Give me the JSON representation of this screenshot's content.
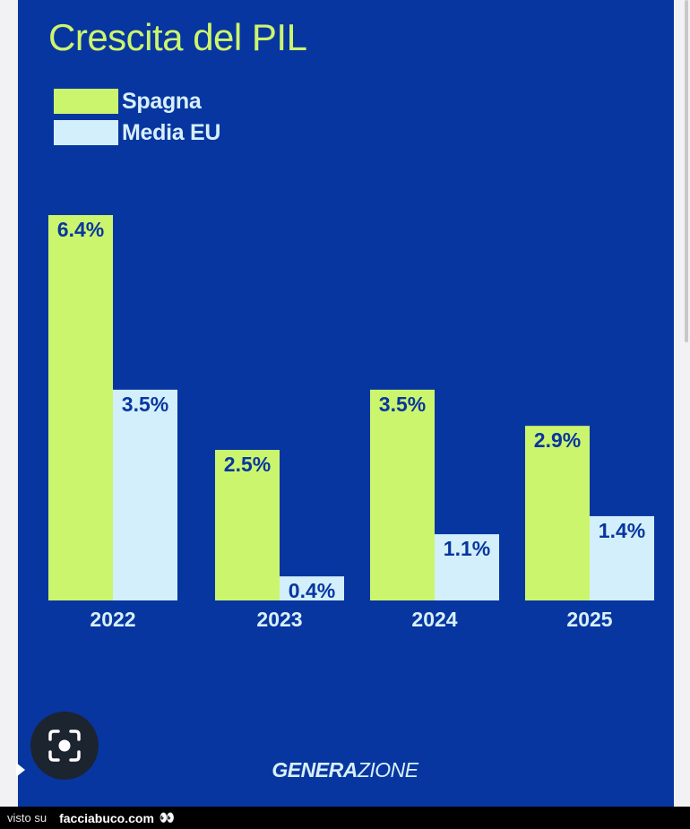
{
  "title": "Crescita del PIL",
  "legend": [
    {
      "label": "Spagna",
      "color": "#ccf56e"
    },
    {
      "label": "Media EU",
      "color": "#d2effb"
    }
  ],
  "chart_data": {
    "type": "bar",
    "title": "Crescita del PIL",
    "categories": [
      "2022",
      "2023",
      "2024",
      "2025"
    ],
    "series": [
      {
        "name": "Spagna",
        "values": [
          6.4,
          2.5,
          3.5,
          2.9
        ],
        "labels": [
          "6.4%",
          "2.5%",
          "3.5%",
          "2.9%"
        ],
        "color": "#ccf56e"
      },
      {
        "name": "Media EU",
        "values": [
          3.5,
          0.4,
          1.1,
          1.4
        ],
        "labels": [
          "3.5%",
          "0.4%",
          "1.1%",
          "1.4%"
        ],
        "color": "#d2effb"
      }
    ],
    "unit": "%",
    "ylim": [
      0,
      6.4
    ],
    "grid": false,
    "legend_position": "top-left"
  },
  "brand": {
    "part1": "GENERA",
    "part2": "ZIONE"
  },
  "footer": {
    "prefix": "visto su",
    "site": "facciabuco.com",
    "eyes": "👀"
  },
  "colors": {
    "background": "#0836a0",
    "accent": "#ccf56e",
    "secondary": "#d2effb"
  }
}
